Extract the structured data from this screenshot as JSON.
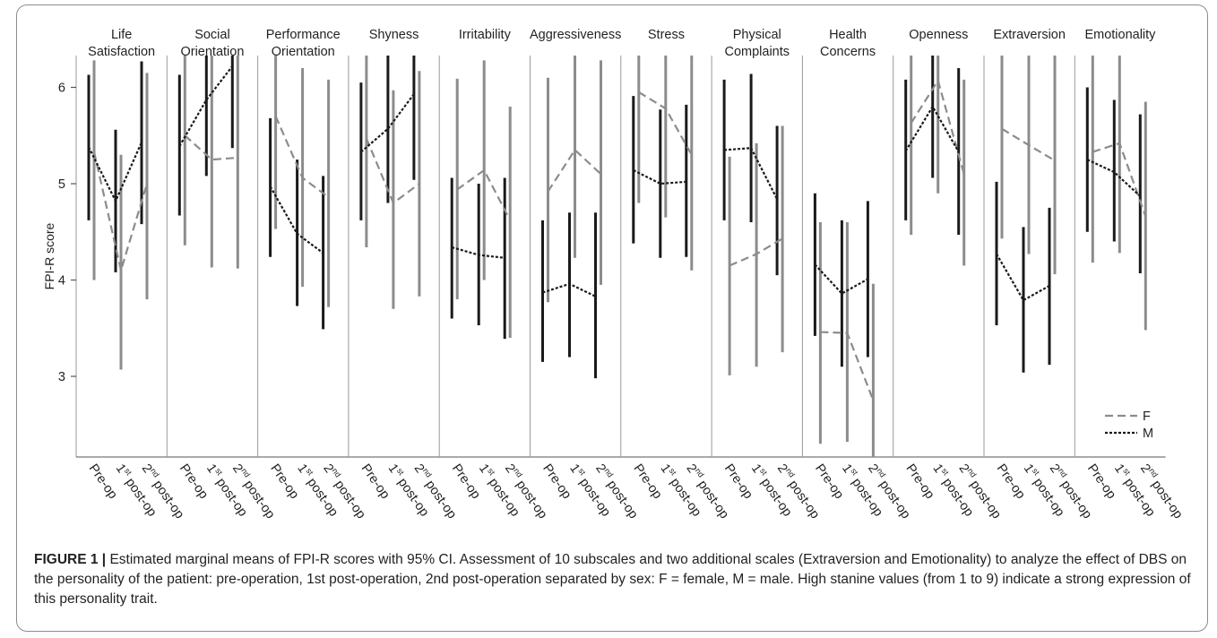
{
  "chart_data": {
    "type": "line",
    "ylabel": "FPI-R score",
    "ylim": [
      2.0,
      7.0
    ],
    "yticks": [
      "3",
      "4",
      "5",
      "6"
    ],
    "x_labels": [
      {
        "base": "Pre-op",
        "sup": "",
        "rest": ""
      },
      {
        "base": "1",
        "sup": "st",
        "rest": " post-op"
      },
      {
        "base": "2",
        "sup": "nd",
        "rest": " post-op"
      }
    ],
    "legend": {
      "position": "bottom-right",
      "entries": [
        {
          "name": "F",
          "color": "#8c8c8c",
          "dash": "dashed"
        },
        {
          "name": "M",
          "color": "#1a1a1a",
          "dash": "dotted"
        }
      ]
    },
    "panels": [
      {
        "title": [
          "Life",
          "Satisfaction"
        ],
        "F": {
          "mean": [
            5.33,
            4.1,
            5.0
          ],
          "lo": [
            4.0,
            3.07,
            3.8
          ],
          "hi": [
            6.28,
            5.3,
            6.15
          ]
        },
        "M": {
          "mean": [
            5.38,
            4.82,
            5.43
          ],
          "lo": [
            4.62,
            4.08,
            4.58
          ],
          "hi": [
            6.13,
            5.56,
            6.27
          ]
        }
      },
      {
        "title": [
          "Social",
          "Orientation"
        ],
        "F": {
          "mean": [
            5.5,
            5.25,
            5.27
          ],
          "lo": [
            4.36,
            4.13,
            4.12
          ],
          "hi": [
            6.65,
            6.36,
            6.47
          ]
        },
        "M": {
          "mean": [
            5.39,
            5.87,
            6.22
          ],
          "lo": [
            4.67,
            5.08,
            5.37
          ],
          "hi": [
            6.13,
            6.6,
            7.0
          ]
        }
      },
      {
        "title": [
          "Performance",
          "Orientation"
        ],
        "F": {
          "mean": [
            5.7,
            5.06,
            4.86
          ],
          "lo": [
            4.53,
            3.93,
            3.72
          ],
          "hi": [
            6.82,
            6.2,
            6.08
          ]
        },
        "M": {
          "mean": [
            4.97,
            4.48,
            4.28
          ],
          "lo": [
            4.24,
            3.73,
            3.49
          ],
          "hi": [
            5.68,
            5.25,
            5.08
          ]
        }
      },
      {
        "title": [
          "Shyness"
        ],
        "F": {
          "mean": [
            5.47,
            4.8,
            5.0
          ],
          "lo": [
            4.34,
            3.7,
            3.83
          ],
          "hi": [
            6.65,
            5.97,
            6.17
          ]
        },
        "M": {
          "mean": [
            5.33,
            5.57,
            5.93
          ],
          "lo": [
            4.62,
            4.8,
            5.04
          ],
          "hi": [
            6.05,
            6.33,
            6.77
          ]
        }
      },
      {
        "title": [
          "Irritability"
        ],
        "F": {
          "mean": [
            4.94,
            5.14,
            4.62
          ],
          "lo": [
            3.8,
            4.0,
            3.4
          ],
          "hi": [
            6.09,
            6.28,
            5.8
          ]
        },
        "M": {
          "mean": [
            4.34,
            4.26,
            4.23
          ],
          "lo": [
            3.6,
            3.53,
            3.39
          ],
          "hi": [
            5.06,
            5.0,
            5.06
          ]
        }
      },
      {
        "title": [
          "Aggressiveness"
        ],
        "F": {
          "mean": [
            4.92,
            5.35,
            5.1
          ],
          "lo": [
            3.77,
            4.23,
            3.95
          ],
          "hi": [
            6.1,
            6.46,
            6.28
          ]
        },
        "M": {
          "mean": [
            3.87,
            3.96,
            3.83
          ],
          "lo": [
            3.15,
            3.2,
            2.98
          ],
          "hi": [
            4.62,
            4.7,
            4.7
          ]
        }
      },
      {
        "title": [
          "Stress"
        ],
        "F": {
          "mean": [
            5.95,
            5.78,
            5.3
          ],
          "lo": [
            4.8,
            4.65,
            4.1
          ],
          "hi": [
            7.05,
            7.0,
            6.47
          ]
        },
        "M": {
          "mean": [
            5.14,
            5.0,
            5.02
          ],
          "lo": [
            4.38,
            4.23,
            4.24
          ],
          "hi": [
            5.91,
            5.77,
            5.82
          ]
        }
      },
      {
        "title": [
          "Physical",
          "Complaints"
        ],
        "F": {
          "mean": [
            4.15,
            4.27,
            4.43
          ],
          "lo": [
            3.01,
            3.1,
            3.25
          ],
          "hi": [
            5.28,
            5.42,
            5.6
          ]
        },
        "M": {
          "mean": [
            5.35,
            5.37,
            4.84
          ],
          "lo": [
            4.62,
            4.6,
            4.05
          ],
          "hi": [
            6.08,
            6.14,
            5.6
          ]
        }
      },
      {
        "title": [
          "Health",
          "Concerns"
        ],
        "F": {
          "mean": [
            3.46,
            3.45,
            2.75
          ],
          "lo": [
            2.3,
            2.32,
            1.6
          ],
          "hi": [
            4.6,
            4.6,
            3.96
          ]
        },
        "M": {
          "mean": [
            4.16,
            3.86,
            4.01
          ],
          "lo": [
            3.42,
            3.1,
            3.2
          ],
          "hi": [
            4.9,
            4.62,
            4.82
          ]
        }
      },
      {
        "title": [
          "Openness"
        ],
        "F": {
          "mean": [
            5.63,
            6.07,
            5.1
          ],
          "lo": [
            4.47,
            4.9,
            4.15
          ],
          "hi": [
            6.77,
            7.05,
            6.08
          ]
        },
        "M": {
          "mean": [
            5.34,
            5.8,
            5.33
          ],
          "lo": [
            4.62,
            5.06,
            4.47
          ],
          "hi": [
            6.08,
            6.55,
            6.2
          ]
        }
      },
      {
        "title": [
          "Extraversion"
        ],
        "F": {
          "mean": [
            5.57,
            5.4,
            5.24
          ],
          "lo": [
            4.43,
            4.27,
            4.06
          ],
          "hi": [
            6.74,
            6.55,
            6.45
          ]
        },
        "M": {
          "mean": [
            4.27,
            3.79,
            3.94
          ],
          "lo": [
            3.53,
            3.04,
            3.12
          ],
          "hi": [
            5.02,
            4.55,
            4.75
          ]
        }
      },
      {
        "title": [
          "Emotionality"
        ],
        "F": {
          "mean": [
            5.33,
            5.42,
            4.66
          ],
          "lo": [
            4.18,
            4.28,
            3.48
          ],
          "hi": [
            6.48,
            6.55,
            5.85
          ]
        },
        "M": {
          "mean": [
            5.25,
            5.12,
            4.87
          ],
          "lo": [
            4.5,
            4.4,
            4.07
          ],
          "hi": [
            6.0,
            5.87,
            5.72
          ]
        }
      }
    ]
  },
  "caption": {
    "label": "FIGURE 1 |",
    "text": " Estimated marginal means of FPI-R scores with 95% CI. Assessment of 10 subscales and two additional scales (Extraversion and Emotionality) to analyze the effect of DBS on the personality of the patient: pre-operation, 1st post-operation, 2nd post-operation separated by sex: F = female, M = male. High stanine values (from 1 to 9) indicate a strong expression of this personality trait."
  }
}
